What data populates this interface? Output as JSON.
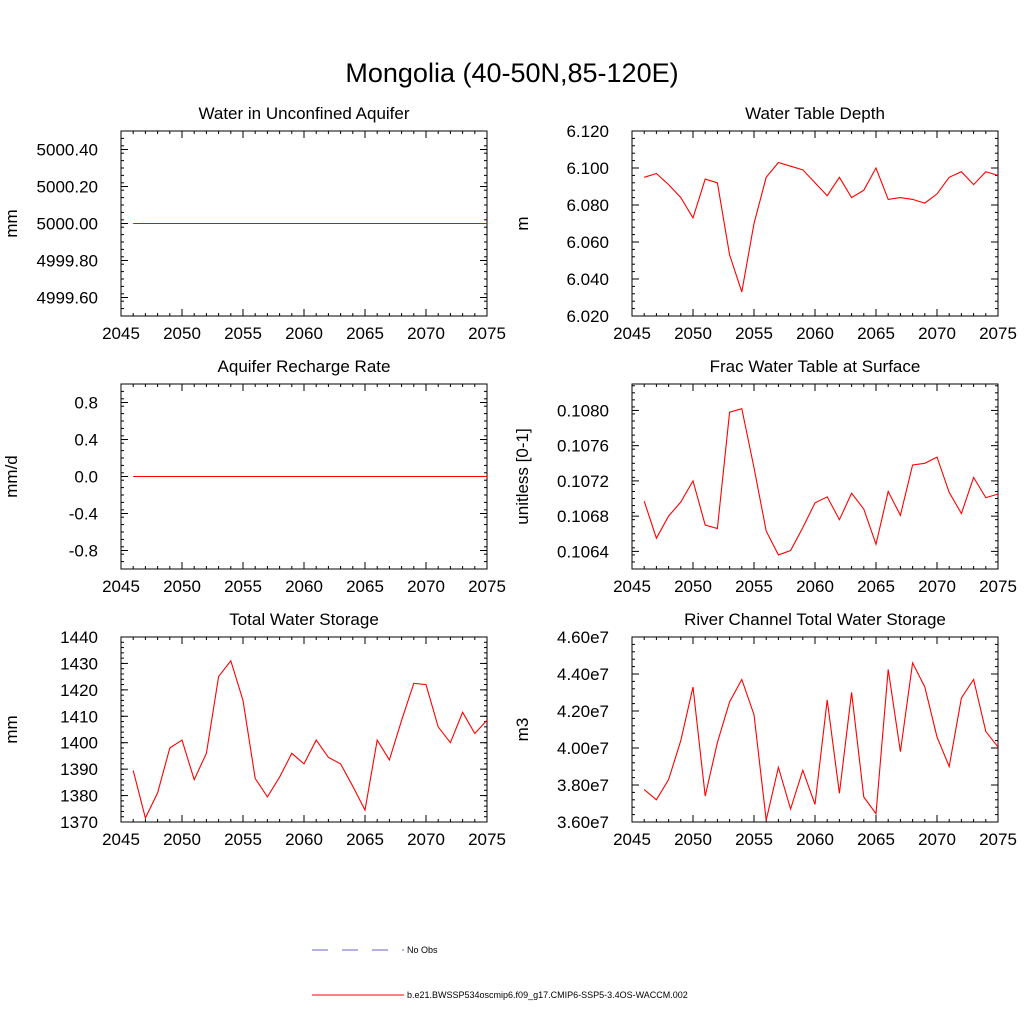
{
  "page_title": "Mongolia (40-50N,85-120E)",
  "colors": {
    "model_line": "#ff0000",
    "obs_line": "#6666cc",
    "axis": "#000000"
  },
  "legend": {
    "obs_label": "No Obs",
    "model_label": "b.e21.BWSSP534oscmip6.f09_g17.CMIP6-SSP5-3.4OS-WACCM.002"
  },
  "chart_data": [
    {
      "type": "line",
      "title": "Water in Unconfined Aquifer",
      "ylabel": "mm",
      "xlim": [
        2045,
        2075
      ],
      "ylim": [
        4999.5,
        5000.5
      ],
      "xticks": [
        2045,
        2050,
        2055,
        2060,
        2065,
        2070,
        2075
      ],
      "xtick_labels": [
        "2045",
        "2050",
        "2055",
        "2060",
        "2065",
        "2070",
        "2075"
      ],
      "yticks": [
        4999.6,
        4999.8,
        5000.0,
        5000.2,
        5000.4
      ],
      "ytick_labels": [
        "4999.60",
        "4999.80",
        "5000.00",
        "5000.20",
        "5000.40"
      ],
      "x": [
        2046,
        2047,
        2048,
        2049,
        2050,
        2051,
        2052,
        2053,
        2054,
        2055,
        2056,
        2057,
        2058,
        2059,
        2060,
        2061,
        2062,
        2063,
        2064,
        2065,
        2066,
        2067,
        2068,
        2069,
        2070,
        2071,
        2072,
        2073,
        2074,
        2075
      ],
      "values": [
        5000,
        5000,
        5000,
        5000,
        5000,
        5000,
        5000,
        5000,
        5000,
        5000,
        5000,
        5000,
        5000,
        5000,
        5000,
        5000,
        5000,
        5000,
        5000,
        5000,
        5000,
        5000,
        5000,
        5000,
        5000,
        5000,
        5000,
        5000,
        5000,
        5000
      ]
    },
    {
      "type": "line",
      "title": "Water Table Depth",
      "ylabel": "m",
      "xlim": [
        2045,
        2075
      ],
      "ylim": [
        6.02,
        6.12
      ],
      "xticks": [
        2045,
        2050,
        2055,
        2060,
        2065,
        2070,
        2075
      ],
      "xtick_labels": [
        "2045",
        "2050",
        "2055",
        "2060",
        "2065",
        "2070",
        "2075"
      ],
      "yticks": [
        6.02,
        6.04,
        6.06,
        6.08,
        6.1,
        6.12
      ],
      "ytick_labels": [
        "6.020",
        "6.040",
        "6.060",
        "6.080",
        "6.100",
        "6.120"
      ],
      "x": [
        2046,
        2047,
        2048,
        2049,
        2050,
        2051,
        2052,
        2053,
        2054,
        2055,
        2056,
        2057,
        2058,
        2059,
        2060,
        2061,
        2062,
        2063,
        2064,
        2065,
        2066,
        2067,
        2068,
        2069,
        2070,
        2071,
        2072,
        2073,
        2074,
        2075
      ],
      "values": [
        6.095,
        6.097,
        6.091,
        6.084,
        6.073,
        6.094,
        6.092,
        6.053,
        6.033,
        6.07,
        6.095,
        6.103,
        6.101,
        6.099,
        6.092,
        6.085,
        6.095,
        6.084,
        6.088,
        6.1,
        6.083,
        6.084,
        6.083,
        6.081,
        6.086,
        6.095,
        6.098,
        6.091,
        6.098,
        6.096
      ]
    },
    {
      "type": "line",
      "title": "Aquifer Recharge Rate",
      "ylabel": "mm/d",
      "xlim": [
        2045,
        2075
      ],
      "ylim": [
        -1.0,
        1.0
      ],
      "xticks": [
        2045,
        2050,
        2055,
        2060,
        2065,
        2070,
        2075
      ],
      "xtick_labels": [
        "2045",
        "2050",
        "2055",
        "2060",
        "2065",
        "2070",
        "2075"
      ],
      "yticks": [
        -0.8,
        -0.4,
        0.0,
        0.4,
        0.8
      ],
      "ytick_labels": [
        "-0.8",
        "-0.4",
        "0.0",
        "0.4",
        "0.8"
      ],
      "x": [
        2046,
        2047,
        2048,
        2049,
        2050,
        2051,
        2052,
        2053,
        2054,
        2055,
        2056,
        2057,
        2058,
        2059,
        2060,
        2061,
        2062,
        2063,
        2064,
        2065,
        2066,
        2067,
        2068,
        2069,
        2070,
        2071,
        2072,
        2073,
        2074,
        2075
      ],
      "values": [
        0,
        0,
        0,
        0,
        0,
        0,
        0,
        0,
        0,
        0,
        0,
        0,
        0,
        0,
        0,
        0,
        0,
        0,
        0,
        0,
        0,
        0,
        0,
        0,
        0,
        0,
        0,
        0,
        0,
        0
      ]
    },
    {
      "type": "line",
      "title": "Frac Water Table at Surface",
      "ylabel": "unitless [0-1]",
      "xlim": [
        2045,
        2075
      ],
      "ylim": [
        0.1062,
        0.1083
      ],
      "xticks": [
        2045,
        2050,
        2055,
        2060,
        2065,
        2070,
        2075
      ],
      "xtick_labels": [
        "2045",
        "2050",
        "2055",
        "2060",
        "2065",
        "2070",
        "2075"
      ],
      "yticks": [
        0.1064,
        0.1068,
        0.1072,
        0.1076,
        0.108
      ],
      "ytick_labels": [
        "0.1064",
        "0.1068",
        "0.1072",
        "0.1076",
        "0.1080"
      ],
      "x": [
        2046,
        2047,
        2048,
        2049,
        2050,
        2051,
        2052,
        2053,
        2054,
        2055,
        2056,
        2057,
        2058,
        2059,
        2060,
        2061,
        2062,
        2063,
        2064,
        2065,
        2066,
        2067,
        2068,
        2069,
        2070,
        2071,
        2072,
        2073,
        2074,
        2075
      ],
      "values": [
        0.10697,
        0.10655,
        0.1068,
        0.10696,
        0.1072,
        0.1067,
        0.10666,
        0.10798,
        0.10802,
        0.10735,
        0.10663,
        0.10636,
        0.10641,
        0.10667,
        0.10695,
        0.10702,
        0.10676,
        0.10706,
        0.10688,
        0.10648,
        0.10708,
        0.10681,
        0.10738,
        0.1074,
        0.10747,
        0.10707,
        0.10683,
        0.10724,
        0.10701,
        0.10705
      ]
    },
    {
      "type": "line",
      "title": "Total Water Storage",
      "ylabel": "mm",
      "xlim": [
        2045,
        2075
      ],
      "ylim": [
        1370,
        1440
      ],
      "xticks": [
        2045,
        2050,
        2055,
        2060,
        2065,
        2070,
        2075
      ],
      "xtick_labels": [
        "2045",
        "2050",
        "2055",
        "2060",
        "2065",
        "2070",
        "2075"
      ],
      "yticks": [
        1370,
        1380,
        1390,
        1400,
        1410,
        1420,
        1430,
        1440
      ],
      "ytick_labels": [
        "1370",
        "1380",
        "1390",
        "1400",
        "1410",
        "1420",
        "1430",
        "1440"
      ],
      "x": [
        2046,
        2047,
        2048,
        2049,
        2050,
        2051,
        2052,
        2053,
        2054,
        2055,
        2056,
        2057,
        2058,
        2059,
        2060,
        2061,
        2062,
        2063,
        2064,
        2065,
        2066,
        2067,
        2068,
        2069,
        2070,
        2071,
        2072,
        2073,
        2074,
        2075
      ],
      "values": [
        1389.5,
        1371.5,
        1381,
        1398,
        1401,
        1386,
        1396,
        1425,
        1431,
        1416,
        1386.5,
        1379.5,
        1387,
        1396,
        1392,
        1401,
        1394.5,
        1392,
        1383.5,
        1374.5,
        1401,
        1393.5,
        1408.5,
        1422.5,
        1422,
        1406,
        1400,
        1411.5,
        1403.5,
        1408.5
      ]
    },
    {
      "type": "line",
      "title": "River Channel Total Water Storage",
      "ylabel": "m3",
      "xlim": [
        2045,
        2075
      ],
      "ylim": [
        36000000.0,
        46000000.0
      ],
      "xticks": [
        2045,
        2050,
        2055,
        2060,
        2065,
        2070,
        2075
      ],
      "xtick_labels": [
        "2045",
        "2050",
        "2055",
        "2060",
        "2065",
        "2070",
        "2075"
      ],
      "yticks": [
        36000000.0,
        38000000.0,
        40000000.0,
        42000000.0,
        44000000.0,
        46000000.0
      ],
      "ytick_labels": [
        "3.60e7",
        "3.80e7",
        "4.00e7",
        "4.20e7",
        "4.40e7",
        "4.60e7"
      ],
      "x": [
        2046,
        2047,
        2048,
        2049,
        2050,
        2051,
        2052,
        2053,
        2054,
        2055,
        2056,
        2057,
        2058,
        2059,
        2060,
        2061,
        2062,
        2063,
        2064,
        2065,
        2066,
        2067,
        2068,
        2069,
        2070,
        2071,
        2072,
        2073,
        2074,
        2075
      ],
      "values": [
        37750000,
        37200000,
        38300000,
        40400000,
        43300000,
        37400000,
        40300000,
        42500000,
        43700000,
        41800000,
        36100000,
        38950000,
        36700000,
        38800000,
        36950000,
        42600000,
        37550000,
        43000000,
        37350000,
        36450000,
        44250000,
        39800000,
        44600000,
        43300000,
        40600000,
        39000000,
        42700000,
        43700000,
        40900000,
        40050000
      ]
    }
  ]
}
